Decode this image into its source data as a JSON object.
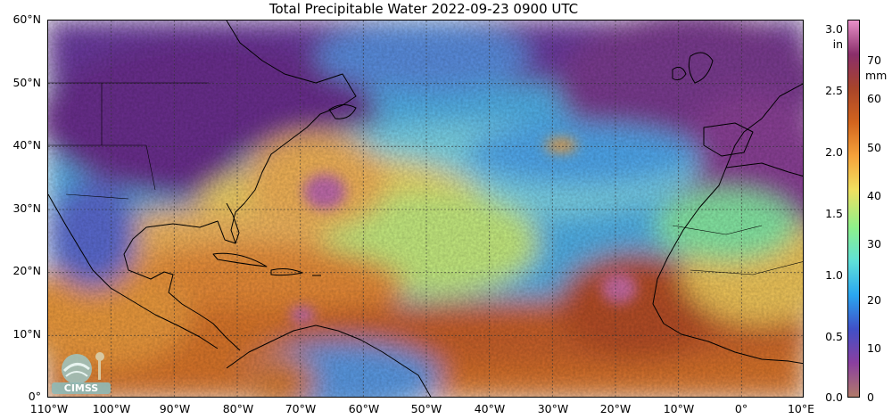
{
  "title": "Total Precipitable Water  2022-09-23 0900 UTC",
  "map": {
    "projection": "equirectangular",
    "lon_range": [
      -110,
      10
    ],
    "lat_range": [
      0,
      60
    ],
    "grid_lines": true,
    "lat_ticks": [
      "60°N",
      "50°N",
      "40°N",
      "30°N",
      "20°N",
      "10°N",
      "0°"
    ],
    "lon_ticks": [
      "110°W",
      "100°W",
      "90°W",
      "80°W",
      "70°W",
      "60°W",
      "50°W",
      "40°W",
      "30°W",
      "20°W",
      "10°W",
      "0°",
      "10°E"
    ]
  },
  "colorbar": {
    "unit_in": "in",
    "unit_mm": "mm",
    "in_ticks": [
      "3.0",
      "2.5",
      "2.0",
      "1.5",
      "1.0",
      "0.5",
      "0.0"
    ],
    "mm_ticks": [
      "70",
      "60",
      "50",
      "40",
      "30",
      "20",
      "10",
      "0"
    ],
    "colors_bottom_to_top": [
      "#b07a6a",
      "#8a3fa0",
      "#4050c8",
      "#2aa6f0",
      "#5fe0d8",
      "#8ef08a",
      "#f0e060",
      "#f6a23a",
      "#d2641e",
      "#a8442a",
      "#8a2e6a",
      "#e890c8"
    ]
  },
  "logo": {
    "text": "CIMSS"
  }
}
